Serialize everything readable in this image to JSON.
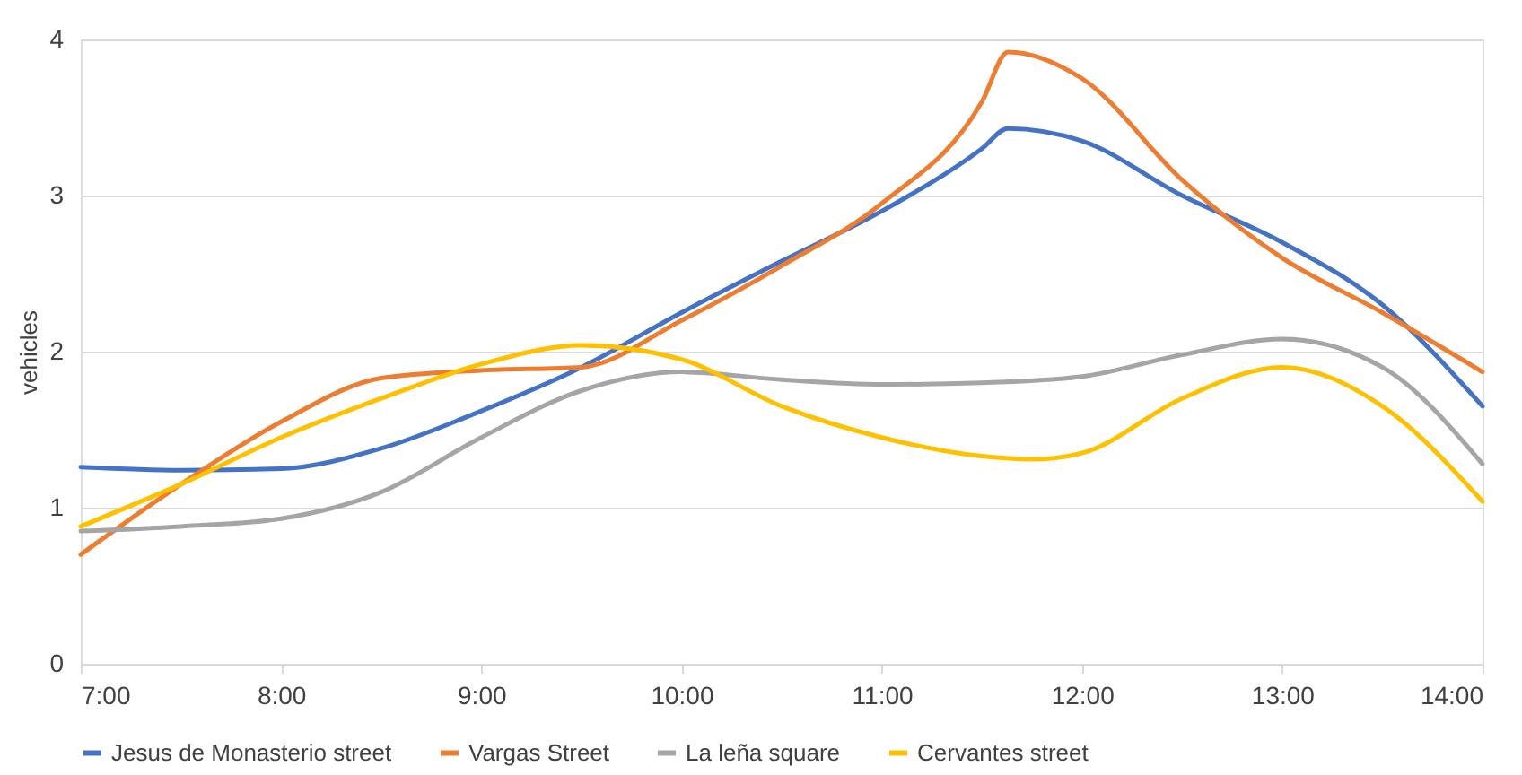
{
  "chart_data": {
    "type": "line",
    "ylabel": "vehicles",
    "xlim": [
      7,
      14
    ],
    "xticks": [
      {
        "value": 7,
        "label": "7:00"
      },
      {
        "value": 8,
        "label": "8:00"
      },
      {
        "value": 9,
        "label": "9:00"
      },
      {
        "value": 10,
        "label": "10:00"
      },
      {
        "value": 11,
        "label": "11:00"
      },
      {
        "value": 12,
        "label": "12:00"
      },
      {
        "value": 13,
        "label": "13:00"
      },
      {
        "value": 14,
        "label": "14:00"
      }
    ],
    "ylim": [
      0,
      4
    ],
    "yticks": [
      0,
      1,
      2,
      3,
      4
    ],
    "grid": "y",
    "legend": "bottom",
    "marker": "none",
    "line_style": "solid",
    "series": [
      {
        "name": "Jesus de Monasterio street",
        "color": "#4472c4",
        "x": [
          7,
          7.5,
          8,
          8.5,
          9,
          9.5,
          10,
          10.5,
          11,
          11.5,
          11.63,
          12,
          12.5,
          13,
          13.5,
          14
        ],
        "values": [
          1.26,
          1.24,
          1.25,
          1.38,
          1.62,
          1.9,
          2.25,
          2.58,
          2.9,
          3.3,
          3.43,
          3.35,
          3.0,
          2.7,
          2.3,
          1.65
        ]
      },
      {
        "name": "Vargas Street",
        "color": "#ed7d31",
        "x": [
          7,
          7.5,
          8,
          8.5,
          9,
          9.5,
          10,
          10.5,
          11,
          11.5,
          11.63,
          12,
          12.5,
          13,
          13.5,
          14
        ],
        "values": [
          0.7,
          1.15,
          1.55,
          1.83,
          1.88,
          1.9,
          2.2,
          2.55,
          2.95,
          3.6,
          3.92,
          3.75,
          3.1,
          2.6,
          2.25,
          1.87
        ]
      },
      {
        "name": "La leña square",
        "color": "#a5a5a5",
        "x": [
          7,
          7.5,
          8,
          8.5,
          9,
          9.5,
          10,
          10.5,
          11,
          11.5,
          12,
          12.5,
          13,
          13.5,
          14
        ],
        "values": [
          0.85,
          0.88,
          0.93,
          1.1,
          1.45,
          1.75,
          1.87,
          1.82,
          1.79,
          1.8,
          1.84,
          1.98,
          2.08,
          1.9,
          1.28
        ]
      },
      {
        "name": "Cervantes street",
        "color": "#ffc000",
        "x": [
          7,
          7.5,
          8,
          8.5,
          9,
          9.5,
          10,
          10.5,
          11,
          11.5,
          11.75,
          12,
          12.5,
          13,
          13.5,
          14
        ],
        "values": [
          0.88,
          1.15,
          1.45,
          1.7,
          1.92,
          2.04,
          1.95,
          1.65,
          1.45,
          1.33,
          1.31,
          1.35,
          1.7,
          1.9,
          1.65,
          1.04
        ]
      }
    ]
  }
}
